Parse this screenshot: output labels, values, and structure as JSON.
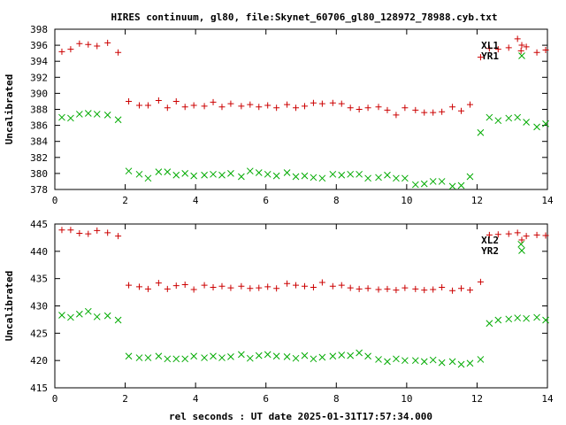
{
  "title": "HIRES continuum, gl80, file:Skynet_60706_gl80_128972_78988.cyb.txt",
  "xlabel": "rel seconds : UT date 2025-01-31T17:57:34.000",
  "colors": {
    "red": "#cc0000",
    "green": "#00aa00"
  },
  "chart_data": [
    {
      "type": "scatter",
      "ylabel": "Uncalibrated",
      "xlim": [
        0,
        14
      ],
      "ylim": [
        378,
        398
      ],
      "xticks": [
        0,
        2,
        4,
        6,
        8,
        10,
        12,
        14
      ],
      "yticks": [
        378,
        380,
        382,
        384,
        386,
        388,
        390,
        392,
        394,
        396,
        398
      ],
      "series": [
        {
          "name": "XL1",
          "marker": "plus",
          "color": "#cc0000",
          "x": [
            0.2,
            0.45,
            0.7,
            0.95,
            1.2,
            1.5,
            1.8,
            2.1,
            2.4,
            2.65,
            2.95,
            3.2,
            3.45,
            3.7,
            3.95,
            4.25,
            4.5,
            4.75,
            5.0,
            5.3,
            5.55,
            5.8,
            6.05,
            6.3,
            6.6,
            6.85,
            7.1,
            7.35,
            7.6,
            7.9,
            8.15,
            8.4,
            8.65,
            8.9,
            9.2,
            9.45,
            9.7,
            9.95,
            10.25,
            10.5,
            10.75,
            11.0,
            11.3,
            11.55,
            11.8,
            12.1,
            12.35,
            12.6,
            12.9,
            13.15,
            13.25,
            13.4,
            13.7,
            13.95
          ],
          "y": [
            395.2,
            395.5,
            396.2,
            396.1,
            395.9,
            396.3,
            395.1,
            389.0,
            388.5,
            388.5,
            389.1,
            388.2,
            389.0,
            388.3,
            388.5,
            388.4,
            388.9,
            388.3,
            388.7,
            388.4,
            388.6,
            388.3,
            388.5,
            388.2,
            388.6,
            388.2,
            388.4,
            388.8,
            388.7,
            388.8,
            388.7,
            388.2,
            388.0,
            388.2,
            388.3,
            387.9,
            387.3,
            388.2,
            387.9,
            387.6,
            387.6,
            387.7,
            388.3,
            387.8,
            388.6,
            394.5,
            395.6,
            395.5,
            395.7,
            396.8,
            395.3,
            395.8,
            395.1,
            395.4
          ]
        },
        {
          "name": "YR1",
          "marker": "cross",
          "color": "#00aa00",
          "x": [
            0.2,
            0.45,
            0.7,
            0.95,
            1.2,
            1.5,
            1.8,
            2.1,
            2.4,
            2.65,
            2.95,
            3.2,
            3.45,
            3.7,
            3.95,
            4.25,
            4.5,
            4.75,
            5.0,
            5.3,
            5.55,
            5.8,
            6.05,
            6.3,
            6.6,
            6.85,
            7.1,
            7.35,
            7.6,
            7.9,
            8.15,
            8.4,
            8.65,
            8.9,
            9.2,
            9.45,
            9.7,
            9.95,
            10.25,
            10.5,
            10.75,
            11.0,
            11.3,
            11.55,
            11.8,
            12.1,
            12.35,
            12.6,
            12.9,
            13.15,
            13.4,
            13.7,
            13.95
          ],
          "y": [
            387.0,
            386.9,
            387.4,
            387.5,
            387.4,
            387.3,
            386.7,
            380.3,
            379.9,
            379.4,
            380.2,
            380.2,
            379.8,
            380.0,
            379.7,
            379.8,
            379.9,
            379.8,
            380.0,
            379.6,
            380.3,
            380.1,
            379.9,
            379.7,
            380.1,
            379.6,
            379.7,
            379.5,
            379.4,
            379.9,
            379.8,
            379.9,
            379.9,
            379.4,
            379.5,
            379.8,
            379.4,
            379.4,
            378.6,
            378.7,
            379.0,
            379.0,
            378.4,
            378.5,
            379.6,
            385.1,
            387.0,
            386.6,
            386.9,
            387.0,
            386.4,
            385.8,
            386.2
          ]
        }
      ]
    },
    {
      "type": "scatter",
      "ylabel": "Uncalibrated",
      "xlim": [
        0,
        14
      ],
      "ylim": [
        415,
        445
      ],
      "xticks": [
        0,
        2,
        4,
        6,
        8,
        10,
        12,
        14
      ],
      "yticks": [
        415,
        420,
        425,
        430,
        435,
        440,
        445
      ],
      "series": [
        {
          "name": "XL2",
          "marker": "plus",
          "color": "#cc0000",
          "x": [
            0.2,
            0.45,
            0.7,
            0.95,
            1.2,
            1.5,
            1.8,
            2.1,
            2.4,
            2.65,
            2.95,
            3.2,
            3.45,
            3.7,
            3.95,
            4.25,
            4.5,
            4.75,
            5.0,
            5.3,
            5.55,
            5.8,
            6.05,
            6.3,
            6.6,
            6.85,
            7.1,
            7.35,
            7.6,
            7.9,
            8.15,
            8.4,
            8.65,
            8.9,
            9.2,
            9.45,
            9.7,
            9.95,
            10.25,
            10.5,
            10.75,
            11.0,
            11.3,
            11.55,
            11.8,
            12.1,
            12.35,
            12.6,
            12.9,
            13.15,
            13.4,
            13.7,
            13.95
          ],
          "y": [
            443.9,
            443.9,
            443.3,
            443.2,
            443.8,
            443.4,
            442.8,
            433.8,
            433.5,
            433.1,
            434.2,
            433.1,
            433.7,
            433.9,
            433.0,
            433.8,
            433.4,
            433.6,
            433.3,
            433.6,
            433.2,
            433.3,
            433.5,
            433.2,
            434.1,
            433.8,
            433.6,
            433.4,
            434.3,
            433.6,
            433.8,
            433.3,
            433.1,
            433.2,
            433.0,
            433.1,
            432.9,
            433.3,
            433.1,
            432.9,
            433.0,
            433.4,
            432.8,
            433.2,
            432.9,
            434.4,
            443.0,
            443.1,
            443.2,
            443.4,
            442.8,
            443.0,
            442.9
          ]
        },
        {
          "name": "YR2",
          "marker": "cross",
          "color": "#00aa00",
          "x": [
            0.2,
            0.45,
            0.7,
            0.95,
            1.2,
            1.5,
            1.8,
            2.1,
            2.4,
            2.65,
            2.95,
            3.2,
            3.45,
            3.7,
            3.95,
            4.25,
            4.5,
            4.75,
            5.0,
            5.3,
            5.55,
            5.8,
            6.05,
            6.3,
            6.6,
            6.85,
            7.1,
            7.35,
            7.6,
            7.9,
            8.15,
            8.4,
            8.65,
            8.9,
            9.2,
            9.45,
            9.7,
            9.95,
            10.25,
            10.5,
            10.75,
            11.0,
            11.3,
            11.55,
            11.8,
            12.1,
            12.35,
            12.6,
            12.9,
            13.15,
            13.25,
            13.4,
            13.7,
            13.95
          ],
          "y": [
            428.3,
            427.9,
            428.5,
            429.0,
            428.0,
            428.2,
            427.4,
            420.8,
            420.5,
            420.5,
            420.8,
            420.3,
            420.3,
            420.3,
            420.8,
            420.5,
            420.8,
            420.5,
            420.7,
            421.1,
            420.4,
            420.9,
            421.1,
            420.8,
            420.7,
            420.4,
            420.9,
            420.3,
            420.6,
            420.8,
            421.0,
            420.9,
            421.4,
            420.8,
            420.2,
            419.8,
            420.3,
            420.0,
            420.0,
            419.8,
            420.1,
            419.6,
            419.8,
            419.3,
            419.5,
            420.2,
            426.8,
            427.4,
            427.6,
            427.8,
            441.3,
            427.7,
            427.9,
            427.4
          ]
        }
      ]
    }
  ]
}
